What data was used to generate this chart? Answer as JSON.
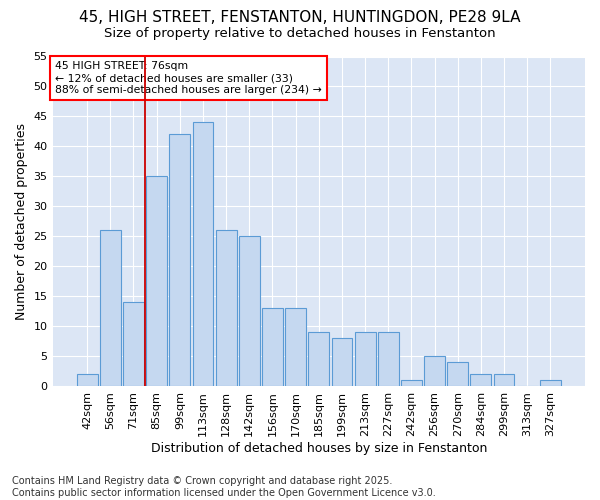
{
  "title1": "45, HIGH STREET, FENSTANTON, HUNTINGDON, PE28 9LA",
  "title2": "Size of property relative to detached houses in Fenstanton",
  "xlabel": "Distribution of detached houses by size in Fenstanton",
  "ylabel": "Number of detached properties",
  "categories": [
    "42sqm",
    "56sqm",
    "71sqm",
    "85sqm",
    "99sqm",
    "113sqm",
    "128sqm",
    "142sqm",
    "156sqm",
    "170sqm",
    "185sqm",
    "199sqm",
    "213sqm",
    "227sqm",
    "242sqm",
    "256sqm",
    "270sqm",
    "284sqm",
    "299sqm",
    "313sqm",
    "327sqm"
  ],
  "values": [
    2,
    26,
    14,
    35,
    42,
    44,
    26,
    25,
    13,
    13,
    9,
    8,
    9,
    9,
    1,
    5,
    4,
    2,
    2,
    0,
    1
  ],
  "bar_color": "#c5d8f0",
  "bar_edge_color": "#5b9bd5",
  "annotation_text_line1": "45 HIGH STREET: 76sqm",
  "annotation_text_line2": "← 12% of detached houses are smaller (33)",
  "annotation_text_line3": "88% of semi-detached houses are larger (234) →",
  "vline_color": "#cc0000",
  "vline_x": 2.5,
  "ylim": [
    0,
    55
  ],
  "yticks": [
    0,
    5,
    10,
    15,
    20,
    25,
    30,
    35,
    40,
    45,
    50,
    55
  ],
  "plot_bg_color": "#dce6f5",
  "fig_bg_color": "#ffffff",
  "grid_color": "#ffffff",
  "footer1": "Contains HM Land Registry data © Crown copyright and database right 2025.",
  "footer2": "Contains public sector information licensed under the Open Government Licence v3.0.",
  "title_fontsize": 11,
  "subtitle_fontsize": 9.5,
  "tick_fontsize": 8,
  "ylabel_fontsize": 9,
  "xlabel_fontsize": 9,
  "footer_fontsize": 7
}
